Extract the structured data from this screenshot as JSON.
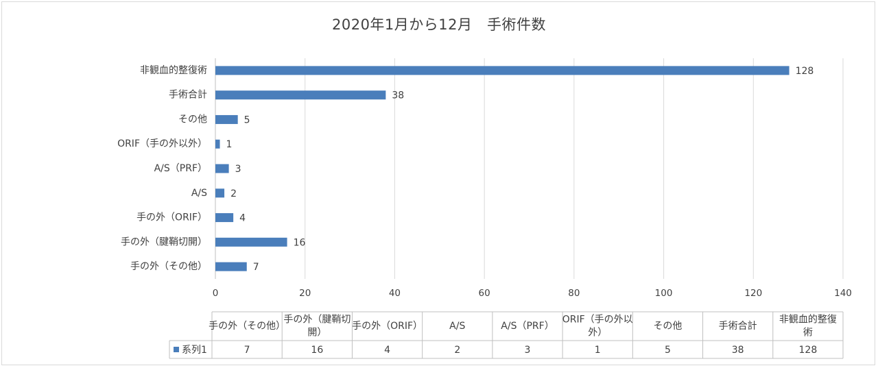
{
  "chart_data": {
    "type": "bar",
    "orientation": "horizontal",
    "title": "2020年1月から12月　手術件数",
    "xlabel": "",
    "ylabel": "",
    "xlim": [
      0,
      140
    ],
    "x_ticks": [
      "0",
      "20",
      "40",
      "60",
      "80",
      "100",
      "120",
      "140"
    ],
    "grid": true,
    "categories": [
      "手の外（その他）",
      "手の外（腱鞘切開）",
      "手の外（ORIF）",
      "A/S",
      "A/S（PRF）",
      "ORIF（手の外以外）",
      "その他",
      "手術合計",
      "非観血的整復術"
    ],
    "table_headers": [
      [
        "手の外（その他）"
      ],
      [
        "手の外（腱鞘切",
        "開）"
      ],
      [
        "手の外（ORIF）"
      ],
      [
        "A/S"
      ],
      [
        "A/S（PRF）"
      ],
      [
        "ORIF（手の外以",
        "外）"
      ],
      [
        "その他"
      ],
      [
        "手術合計"
      ],
      [
        "非観血的整復",
        "術"
      ]
    ],
    "series": [
      {
        "name": "系列1",
        "values": [
          7,
          16,
          4,
          2,
          3,
          1,
          5,
          38,
          128
        ],
        "color": "#4a7ebb"
      }
    ],
    "data_labels": true,
    "legend": "data-table"
  }
}
